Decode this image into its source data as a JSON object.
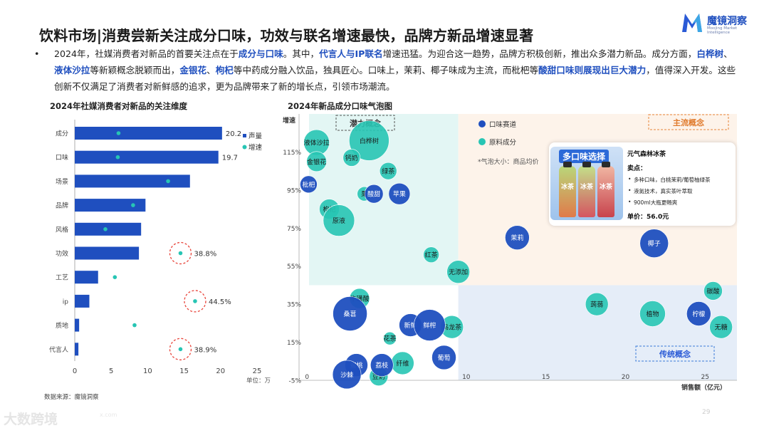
{
  "title": "饮料市场|消费尝新关注成分口味，功效与联名增速最快，品牌方新品增速显著",
  "logo": {
    "name": "魔镜洞察",
    "tagline": "Moojing Market Intelligence"
  },
  "summary": {
    "bullet": "•",
    "parts": [
      {
        "text": "2024年，社媒消费者对新品的首要关注点在于",
        "hl": false
      },
      {
        "text": "成分与口味",
        "hl": true
      },
      {
        "text": "。其中，",
        "hl": false
      },
      {
        "text": "代言人与IP联名",
        "hl": true
      },
      {
        "text": "增速迅猛。为迎合这一趋势，品牌方积极创新，推出众多潜力新品。成分方面，",
        "hl": false
      },
      {
        "text": "白桦树",
        "hl": true
      },
      {
        "text": "、",
        "hl": false
      },
      {
        "text": "液体沙拉",
        "hl": true
      },
      {
        "text": "等新颖概念脱颖而出，",
        "hl": false
      },
      {
        "text": "金银花",
        "hl": true
      },
      {
        "text": "、",
        "hl": false
      },
      {
        "text": "枸杞",
        "hl": true
      },
      {
        "text": "等中药成分融入饮品，独具匠心。口味上，茉莉、椰子味成为主流，而枇杷等",
        "hl": false
      },
      {
        "text": "酸甜口味则展现出巨大潜力",
        "hl": true
      },
      {
        "text": "，值得深入开发。这些创新不仅满足了消费者对新鲜感的追求，更为品牌带来了新的增长点，引领市场潮流。",
        "hl": false
      }
    ]
  },
  "source": "数据来源：魔镜洞察",
  "page_number": "29",
  "watermark": {
    "main": "大数跨境",
    "small": "x.com"
  },
  "colors": {
    "blue": "#1f4fbf",
    "teal": "#27c5b4",
    "red_dash": "#e8443a",
    "quad_green": "#e3f6f4",
    "quad_orange": "#fdf3ea",
    "quad_blue": "#e5edf8"
  },
  "product_card": {
    "banner": "多口味选择",
    "bottle_label": "冰茶",
    "name": "元气森林冰茶",
    "selling_title": "卖点：",
    "points": [
      "多种口味，白桃茉莉/葡萄柚绿茶",
      "液氮技术，真实茶叶萃取",
      "900ml大瓶更畅爽"
    ],
    "price": "单价：56.0元"
  },
  "chart_data": [
    {
      "type": "bar",
      "title": "2024年社媒消费者对新品的关注维度",
      "orientation": "horizontal",
      "categories": [
        "成分",
        "口味",
        "场景",
        "品牌",
        "风格",
        "功效",
        "工艺",
        "ip",
        "质地",
        "代言人"
      ],
      "series": [
        {
          "name": "声量",
          "values": [
            20.2,
            19.7,
            15.8,
            9.7,
            9.1,
            8.8,
            3.2,
            2.0,
            0.6,
            0.5
          ]
        },
        {
          "name": "增速",
          "values": [
            6.0,
            5.9,
            12.8,
            8.0,
            4.2,
            14.5,
            5.5,
            16.5,
            8.2,
            14.5
          ]
        }
      ],
      "value_labels": {
        "成分": "20.2",
        "口味": "19.7"
      },
      "growth_labels": {
        "功效": "38.8%",
        "ip": "44.5%",
        "代言人": "38.9%"
      },
      "highlighted": [
        "功效",
        "ip",
        "代言人"
      ],
      "xlim": [
        0,
        25
      ],
      "xticks": [
        "0",
        "5",
        "10",
        "15",
        "20",
        "25"
      ],
      "unit": "单位：万",
      "legend": "right"
    },
    {
      "type": "scatter",
      "title": "2024年新品成分口味气泡图",
      "ylabel": "增速",
      "xlabel": "销售额（亿元）",
      "xlim": [
        -0.5,
        27
      ],
      "ylim": [
        -5,
        135
      ],
      "xticks": [
        "0",
        "5",
        "10",
        "15",
        "20",
        "25"
      ],
      "yticks": [
        "-5%",
        "15%",
        "35%",
        "55%",
        "75%",
        "95%",
        "115%"
      ],
      "legend": [
        {
          "name": "口味赛道",
          "color": "#1f4fbf"
        },
        {
          "name": "原料成分",
          "color": "#27c5b4"
        }
      ],
      "bubble_note": "*气泡大小：商品均价",
      "quadrants": [
        "潜力概念",
        "主流概念",
        "传统概念"
      ],
      "x_divider": 9.5,
      "y_divider": 45,
      "series": [
        {
          "name": "口味赛道",
          "points": [
            {
              "label": "枇杷",
              "x": 0.1,
              "y": 98,
              "size": 12
            },
            {
              "label": "酸甜",
              "x": 4.2,
              "y": 93,
              "size": 13
            },
            {
              "label": "苹果",
              "x": 5.8,
              "y": 93,
              "size": 15
            },
            {
              "label": "茉莉",
              "x": 13.2,
              "y": 70,
              "size": 17
            },
            {
              "label": "椰子",
              "x": 21.8,
              "y": 67,
              "size": 20
            },
            {
              "label": "桑葚",
              "x": 2.7,
              "y": 30,
              "size": 24
            },
            {
              "label": "新鲜",
              "x": 6.5,
              "y": 24,
              "size": 16
            },
            {
              "label": "鲜榨",
              "x": 7.7,
              "y": 24,
              "size": 22
            },
            {
              "label": "葡萄",
              "x": 8.6,
              "y": 7,
              "size": 17
            },
            {
              "label": "柠檬",
              "x": 24.6,
              "y": 30,
              "size": 17
            },
            {
              "label": "蜜桃",
              "x": 3.1,
              "y": 3,
              "size": 16
            },
            {
              "label": "荔枝",
              "x": 4.7,
              "y": 3,
              "size": 16
            },
            {
              "label": "沙棘",
              "x": 2.5,
              "y": -2,
              "size": 20
            }
          ]
        },
        {
          "name": "原料成分",
          "points": [
            {
              "label": "液体沙拉",
              "x": 0.6,
              "y": 120,
              "size": 18
            },
            {
              "label": "白桦树",
              "x": 3.9,
              "y": 121,
              "size": 28
            },
            {
              "label": "金银花",
              "x": 0.6,
              "y": 110,
              "size": 14
            },
            {
              "label": "钙奶",
              "x": 2.8,
              "y": 112,
              "size": 12
            },
            {
              "label": "绿茶",
              "x": 5.1,
              "y": 105,
              "size": 12
            },
            {
              "label": "果",
              "x": 3.6,
              "y": 93,
              "size": 10
            },
            {
              "label": "枸杞",
              "x": 1.4,
              "y": 85,
              "size": 14
            },
            {
              "label": "原液",
              "x": 2.0,
              "y": 79,
              "size": 22
            },
            {
              "label": "红茶",
              "x": 7.8,
              "y": 61,
              "size": 11
            },
            {
              "label": "无添加",
              "x": 9.5,
              "y": 52,
              "size": 16
            },
            {
              "label": "牛磺酸",
              "x": 3.3,
              "y": 38,
              "size": 14
            },
            {
              "label": "蒟蒻",
              "x": 18.2,
              "y": 35,
              "size": 16
            },
            {
              "label": "植物",
              "x": 21.7,
              "y": 30,
              "size": 18
            },
            {
              "label": "碳酸",
              "x": 25.5,
              "y": 42,
              "size": 13
            },
            {
              "label": "无糖",
              "x": 26.0,
              "y": 23,
              "size": 16
            },
            {
              "label": "乌龙茶",
              "x": 9.1,
              "y": 23,
              "size": 16
            },
            {
              "label": "花茶",
              "x": 5.2,
              "y": 17,
              "size": 9
            },
            {
              "label": "纤维",
              "x": 6.0,
              "y": 4,
              "size": 16
            },
            {
              "label": "豆奶",
              "x": 4.5,
              "y": -3,
              "size": 13
            }
          ]
        }
      ]
    }
  ]
}
